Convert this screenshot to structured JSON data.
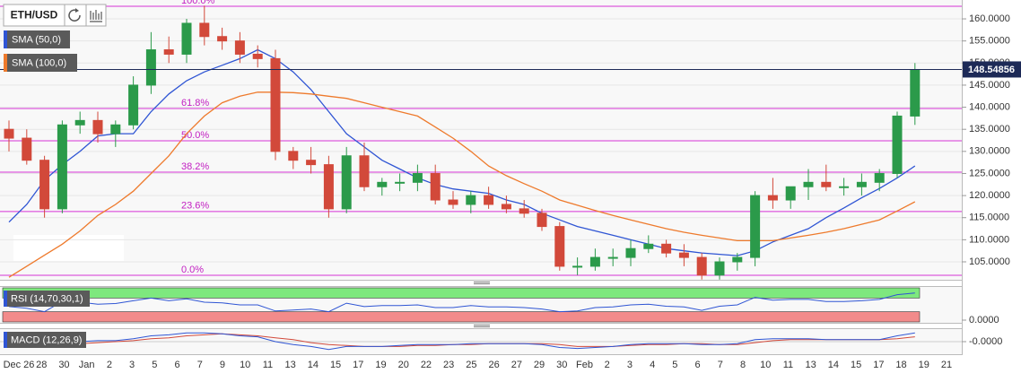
{
  "toolbar": {
    "symbol": "ETH/USD"
  },
  "chart_data": [
    {
      "type": "candlestick",
      "x_ticks": [
        "Dec 26",
        "28",
        "30",
        "Jan",
        "2",
        "3",
        "5",
        "6",
        "7",
        "9",
        "10",
        "11",
        "13",
        "14",
        "15",
        "17",
        "19",
        "20",
        "22",
        "23",
        "25",
        "26",
        "27",
        "29",
        "30",
        "Feb",
        "2",
        "3",
        "4",
        "5",
        "6",
        "7",
        "8",
        "10",
        "11",
        "13",
        "14",
        "15",
        "17",
        "18",
        "19",
        "21"
      ],
      "open": [
        135,
        133,
        128,
        117,
        136,
        137,
        134,
        136,
        145,
        153,
        152,
        159,
        156,
        155,
        152,
        151,
        130,
        128,
        127,
        117,
        129,
        122,
        123,
        123,
        125,
        119,
        118,
        120,
        118,
        117,
        116,
        113,
        104,
        104,
        106,
        106,
        108,
        109,
        107,
        106,
        102,
        105,
        106,
        120,
        119,
        122,
        123,
        122,
        122,
        123,
        125,
        138
      ],
      "high": [
        137,
        135,
        129,
        137,
        139,
        139,
        137,
        147,
        157,
        156,
        160,
        163,
        158,
        157,
        154,
        153,
        131,
        131,
        129,
        131,
        132,
        124,
        125,
        127,
        127,
        121,
        121,
        122,
        120,
        119,
        117,
        114,
        106,
        108,
        108,
        110,
        111,
        110,
        109,
        107,
        106,
        107,
        121,
        124,
        122,
        126,
        127,
        124,
        125,
        126,
        139,
        150
      ],
      "low": [
        130,
        127,
        115,
        116,
        134,
        132,
        131,
        135,
        143,
        150,
        150,
        154,
        153,
        150,
        149,
        128,
        126,
        125,
        115,
        116,
        121,
        120,
        121,
        121,
        118,
        117,
        116,
        117,
        116,
        115,
        112,
        103,
        102,
        103,
        104,
        104,
        107,
        106,
        104,
        101,
        101,
        103,
        104,
        117,
        117,
        119,
        121,
        120,
        120,
        121,
        124,
        136
      ],
      "close": [
        133,
        128,
        117,
        136,
        137,
        134,
        136,
        145,
        153,
        152,
        159,
        156,
        155,
        152,
        151,
        130,
        128,
        127,
        117,
        129,
        122,
        123,
        123,
        125,
        119,
        118,
        120,
        118,
        117,
        116,
        113,
        104,
        104,
        106,
        106,
        108,
        109,
        107,
        106,
        102,
        105,
        106,
        120,
        119,
        122,
        123,
        122,
        122,
        123,
        125,
        138,
        148.5
      ],
      "up_color": "#2b9a4a",
      "down_color": "#d2493a",
      "series": [
        {
          "name": "SMA (50,0)",
          "color": "#2f55d4",
          "values": [
            114,
            118,
            123.5,
            127,
            130,
            133.5,
            134,
            134,
            139,
            143,
            146,
            148,
            149.5,
            151,
            153,
            151,
            148,
            144,
            139,
            134,
            131,
            128,
            126,
            124,
            122.5,
            121.5,
            121,
            120.5,
            119,
            118,
            116,
            114.5,
            113,
            112,
            111,
            110,
            109,
            108,
            107.5,
            107,
            106.7,
            106.4,
            107.5,
            109.5,
            111,
            112.5,
            115,
            117.2,
            119.5,
            121.6,
            124,
            126.7
          ]
        },
        {
          "name": "SMA (100,0)",
          "color": "#ee7a2c",
          "values": [
            101.5,
            104,
            106.5,
            109,
            112,
            115.5,
            118,
            121,
            125,
            129,
            134,
            138,
            141,
            142.5,
            143.4,
            143.4,
            143.3,
            143,
            142.5,
            142,
            141,
            140,
            139,
            138,
            135.5,
            133,
            130,
            126.7,
            124.5,
            122.7,
            121,
            119,
            117.8,
            116.6,
            115.5,
            114.5,
            113.5,
            112.5,
            111.7,
            111,
            110.4,
            109.8,
            109.8,
            109.8,
            110.4,
            111,
            111.7,
            112.5,
            113.5,
            114.5,
            116.5,
            118.6
          ]
        }
      ],
      "ylim": [
        100.94,
        164.27
      ],
      "yticks": [
        {
          "value": 105,
          "label": "105.0000"
        },
        {
          "value": 110,
          "label": "110.0000"
        },
        {
          "value": 115,
          "label": "115.0000"
        },
        {
          "value": 120,
          "label": "120.0000"
        },
        {
          "value": 125,
          "label": "125.0000"
        },
        {
          "value": 130,
          "label": "130.0000"
        },
        {
          "value": 135,
          "label": "135.0000"
        },
        {
          "value": 140,
          "label": "140.0000"
        },
        {
          "value": 145,
          "label": "145.0000"
        },
        {
          "value": 150,
          "label": "150.0000"
        },
        {
          "value": 155,
          "label": "155.0000"
        },
        {
          "value": 160,
          "label": "160.0000"
        }
      ],
      "grid": true,
      "last_price": {
        "value": 148.54856,
        "label": "148.54856",
        "color": "#1d2a57"
      },
      "fib_color": "#d633d6",
      "fib_levels": [
        {
          "value": 162.85,
          "label": "100.0%"
        },
        {
          "value": 139.7,
          "label": "61.8%"
        },
        {
          "value": 132.4,
          "label": "50.0%"
        },
        {
          "value": 125.3,
          "label": "38.2%"
        },
        {
          "value": 116.4,
          "label": "23.6%"
        },
        {
          "value": 101.95,
          "label": "0.0%"
        }
      ]
    },
    {
      "type": "line",
      "name": "RSI (14,70,30,1)",
      "color": "#2f55d4",
      "values": [
        45,
        40,
        30,
        60,
        58,
        52,
        54,
        62,
        70,
        62,
        68,
        58,
        56,
        50,
        50,
        32,
        35,
        38,
        30,
        55,
        45,
        48,
        48,
        50,
        42,
        42,
        48,
        44,
        44,
        42,
        38,
        30,
        32,
        42,
        44,
        50,
        52,
        46,
        44,
        34,
        46,
        50,
        72,
        64,
        66,
        66,
        60,
        60,
        62,
        66,
        80,
        85
      ],
      "ylim": [
        0,
        100
      ],
      "upper": 70,
      "lower": 30,
      "upper_color": "#7ee87e",
      "lower_color": "#f28b8b",
      "yticks": [
        {
          "value": 0,
          "label": "0.0000"
        }
      ]
    },
    {
      "type": "line",
      "name": "MACD (12,26,9)",
      "color": "#2f55d4",
      "signal_color": "#d2493a",
      "values": [
        -2,
        -4,
        -6,
        -3,
        0,
        1,
        1,
        3,
        6,
        7,
        9,
        9,
        8,
        6,
        5,
        0,
        -3,
        -5,
        -8,
        -5,
        -5,
        -5,
        -4,
        -3,
        -3,
        -3,
        -2,
        -2,
        -2,
        -2,
        -3,
        -6,
        -7,
        -6,
        -5,
        -3,
        -2,
        -2,
        -2,
        -3,
        -3,
        -2,
        2,
        3,
        3,
        3,
        2,
        2,
        2,
        2,
        6,
        9
      ],
      "signal": [
        -1,
        -2,
        -3,
        -3,
        -2,
        -1,
        0,
        1,
        3,
        4,
        6,
        7,
        8,
        7,
        6,
        4,
        2,
        -1,
        -3,
        -4,
        -5,
        -5,
        -5,
        -4,
        -4,
        -3,
        -3,
        -2,
        -2,
        -2,
        -2,
        -3,
        -5,
        -5,
        -5,
        -4,
        -3,
        -3,
        -2,
        -2,
        -3,
        -3,
        -1,
        1,
        2,
        2,
        2,
        2,
        2,
        2,
        3,
        5
      ],
      "ylim": [
        -12,
        12
      ],
      "yticks": [
        {
          "value": 0,
          "label": "-0.0000"
        }
      ]
    }
  ]
}
